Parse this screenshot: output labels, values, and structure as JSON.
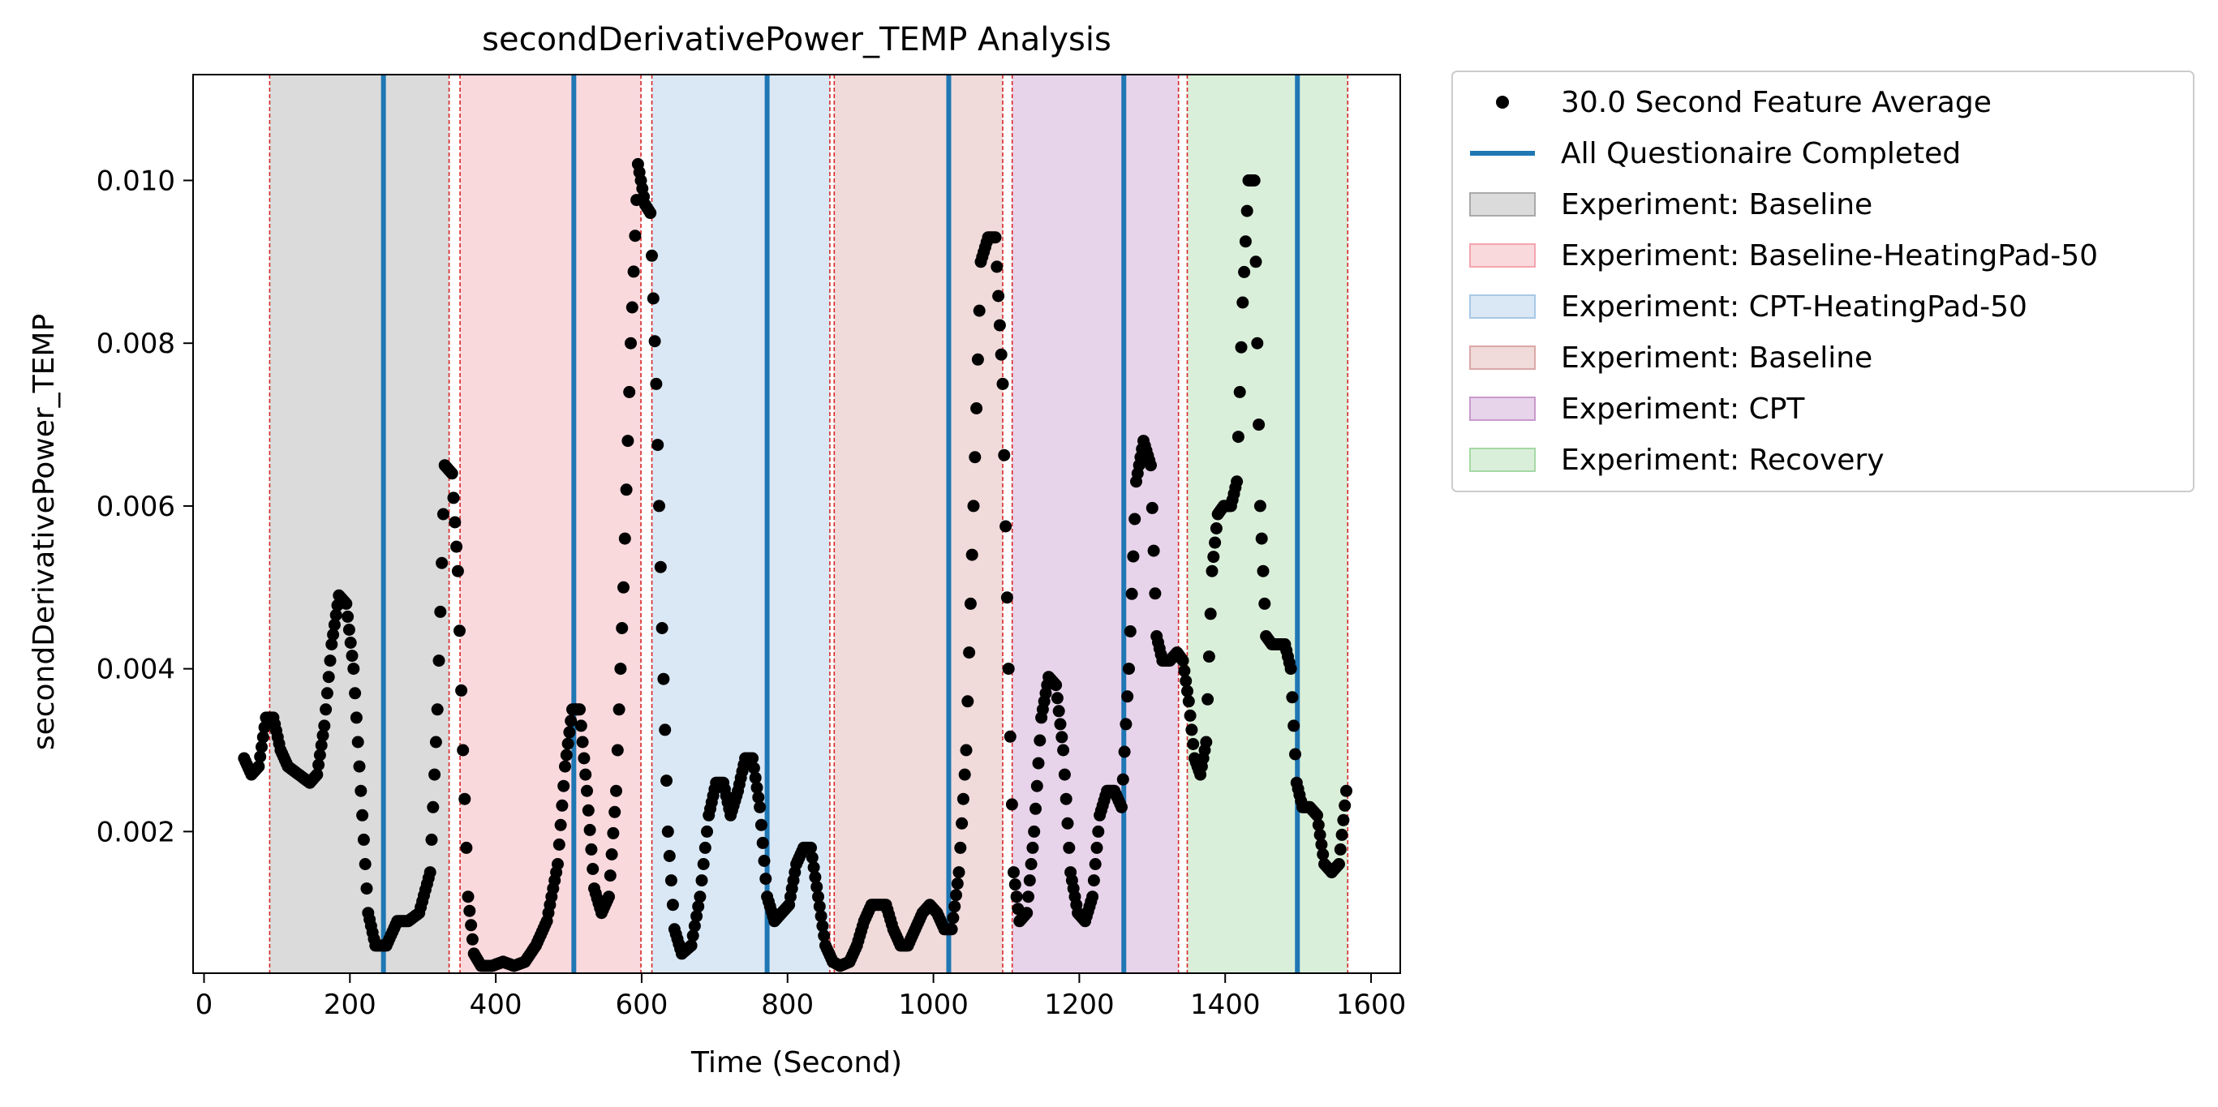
{
  "chart_data": {
    "type": "scatter",
    "title": "secondDerivativePower_TEMP Analysis",
    "xlabel": "Time (Second)",
    "ylabel": "secondDerivativePower_TEMP",
    "xlim": [
      -15,
      1640
    ],
    "ylim": [
      0.00026,
      0.0113
    ],
    "xticks": [
      0,
      200,
      400,
      600,
      800,
      1000,
      1200,
      1400,
      1600
    ],
    "xtick_labels": [
      "0",
      "200",
      "400",
      "600",
      "800",
      "1000",
      "1200",
      "1400",
      "1600"
    ],
    "yticks": [
      0.002,
      0.004,
      0.006,
      0.008,
      0.01
    ],
    "ytick_labels": [
      "0.002",
      "0.004",
      "0.006",
      "0.008",
      "0.010"
    ],
    "grid": false,
    "legend_position": "outside-top-right",
    "legend": [
      {
        "label": "30.0 Second Feature Average",
        "kind": "marker",
        "color": "#000000"
      },
      {
        "label": "All Questionaire Completed",
        "kind": "line",
        "color": "#1f77b4"
      },
      {
        "label": "Experiment: Baseline",
        "kind": "patch",
        "color": "#a9a9a9"
      },
      {
        "label": "Experiment: Baseline-HeatingPad-50",
        "kind": "patch",
        "color": "#f4a5ae"
      },
      {
        "label": "Experiment: CPT-HeatingPad-50",
        "kind": "patch",
        "color": "#a8c8e6"
      },
      {
        "label": "Experiment: Baseline",
        "kind": "patch",
        "color": "#dba7a7"
      },
      {
        "label": "Experiment: CPT",
        "kind": "patch",
        "color": "#c899cc"
      },
      {
        "label": "Experiment: Recovery",
        "kind": "patch",
        "color": "#a6d8a6"
      }
    ],
    "phases": [
      {
        "label": "Experiment: Baseline",
        "start": 90,
        "end": 336,
        "color": "#a9a9a9"
      },
      {
        "label": "Experiment: Baseline-HeatingPad-50",
        "start": 351,
        "end": 599,
        "color": "#f4a5ae"
      },
      {
        "label": "Experiment: CPT-HeatingPad-50",
        "start": 614,
        "end": 858,
        "color": "#a8c8e6"
      },
      {
        "label": "Experiment: Baseline",
        "start": 864,
        "end": 1095,
        "color": "#dba7a7"
      },
      {
        "label": "Experiment: CPT",
        "start": 1108,
        "end": 1336,
        "color": "#c899cc"
      },
      {
        "label": "Experiment: Recovery",
        "start": 1348,
        "end": 1568,
        "color": "#a6d8a6"
      }
    ],
    "boundary_lines_x": [
      90,
      336,
      351,
      599,
      614,
      858,
      864,
      1095,
      1108,
      1336,
      1348,
      1568
    ],
    "questionnaire_x": [
      246,
      507,
      772,
      1021,
      1261,
      1499
    ],
    "series": [
      {
        "name": "30.0 Second Feature Average",
        "points": [
          [
            55,
            0.0029
          ],
          [
            65,
            0.0027
          ],
          [
            75,
            0.0028
          ],
          [
            85,
            0.0034
          ],
          [
            95,
            0.0034
          ],
          [
            105,
            0.003
          ],
          [
            115,
            0.0028
          ],
          [
            130,
            0.0027
          ],
          [
            145,
            0.0026
          ],
          [
            155,
            0.0027
          ],
          [
            165,
            0.0033
          ],
          [
            175,
            0.0043
          ],
          [
            185,
            0.0049
          ],
          [
            195,
            0.0048
          ],
          [
            205,
            0.004
          ],
          [
            215,
            0.0025
          ],
          [
            225,
            0.001
          ],
          [
            235,
            0.0006
          ],
          [
            250,
            0.0006
          ],
          [
            265,
            0.0009
          ],
          [
            280,
            0.0009
          ],
          [
            295,
            0.001
          ],
          [
            310,
            0.0015
          ],
          [
            320,
            0.0035
          ],
          [
            330,
            0.0065
          ],
          [
            340,
            0.0064
          ],
          [
            348,
            0.0052
          ],
          [
            355,
            0.003
          ],
          [
            362,
            0.0012
          ],
          [
            370,
            0.0005
          ],
          [
            380,
            0.00035
          ],
          [
            395,
            0.00035
          ],
          [
            410,
            0.0004
          ],
          [
            425,
            0.00035
          ],
          [
            440,
            0.0004
          ],
          [
            455,
            0.0006
          ],
          [
            470,
            0.0009
          ],
          [
            485,
            0.0016
          ],
          [
            495,
            0.0028
          ],
          [
            505,
            0.0035
          ],
          [
            515,
            0.0035
          ],
          [
            525,
            0.0025
          ],
          [
            535,
            0.0013
          ],
          [
            545,
            0.001
          ],
          [
            555,
            0.0012
          ],
          [
            565,
            0.0025
          ],
          [
            575,
            0.005
          ],
          [
            585,
            0.008
          ],
          [
            595,
            0.0102
          ],
          [
            605,
            0.0097
          ],
          [
            612,
            0.0096
          ],
          [
            620,
            0.0075
          ],
          [
            628,
            0.0045
          ],
          [
            636,
            0.002
          ],
          [
            645,
            0.0008
          ],
          [
            655,
            0.0005
          ],
          [
            668,
            0.0006
          ],
          [
            680,
            0.0012
          ],
          [
            692,
            0.0022
          ],
          [
            702,
            0.0026
          ],
          [
            712,
            0.0026
          ],
          [
            722,
            0.0022
          ],
          [
            732,
            0.0025
          ],
          [
            742,
            0.0029
          ],
          [
            752,
            0.0029
          ],
          [
            762,
            0.0023
          ],
          [
            772,
            0.0012
          ],
          [
            782,
            0.0009
          ],
          [
            792,
            0.001
          ],
          [
            802,
            0.0011
          ],
          [
            812,
            0.0016
          ],
          [
            822,
            0.0018
          ],
          [
            832,
            0.0018
          ],
          [
            842,
            0.0012
          ],
          [
            852,
            0.0006
          ],
          [
            862,
            0.0004
          ],
          [
            872,
            0.00035
          ],
          [
            885,
            0.0004
          ],
          [
            895,
            0.0006
          ],
          [
            905,
            0.0009
          ],
          [
            915,
            0.0011
          ],
          [
            925,
            0.0011
          ],
          [
            935,
            0.0011
          ],
          [
            945,
            0.0008
          ],
          [
            955,
            0.0006
          ],
          [
            965,
            0.0006
          ],
          [
            975,
            0.0008
          ],
          [
            985,
            0.001
          ],
          [
            995,
            0.0011
          ],
          [
            1005,
            0.001
          ],
          [
            1015,
            0.0008
          ],
          [
            1025,
            0.0008
          ],
          [
            1035,
            0.0015
          ],
          [
            1045,
            0.003
          ],
          [
            1055,
            0.006
          ],
          [
            1065,
            0.009
          ],
          [
            1075,
            0.0093
          ],
          [
            1085,
            0.0093
          ],
          [
            1095,
            0.0075
          ],
          [
            1103,
            0.004
          ],
          [
            1110,
            0.0015
          ],
          [
            1118,
            0.0009
          ],
          [
            1128,
            0.001
          ],
          [
            1138,
            0.002
          ],
          [
            1148,
            0.0034
          ],
          [
            1158,
            0.0039
          ],
          [
            1168,
            0.0038
          ],
          [
            1178,
            0.003
          ],
          [
            1188,
            0.0015
          ],
          [
            1198,
            0.001
          ],
          [
            1208,
            0.0009
          ],
          [
            1218,
            0.0012
          ],
          [
            1228,
            0.0022
          ],
          [
            1238,
            0.0025
          ],
          [
            1248,
            0.0025
          ],
          [
            1258,
            0.0023
          ],
          [
            1268,
            0.004
          ],
          [
            1278,
            0.0063
          ],
          [
            1288,
            0.0068
          ],
          [
            1298,
            0.0065
          ],
          [
            1306,
            0.0044
          ],
          [
            1314,
            0.0041
          ],
          [
            1324,
            0.0041
          ],
          [
            1334,
            0.0042
          ],
          [
            1342,
            0.0041
          ],
          [
            1350,
            0.0036
          ],
          [
            1358,
            0.0029
          ],
          [
            1366,
            0.0027
          ],
          [
            1374,
            0.0031
          ],
          [
            1382,
            0.0052
          ],
          [
            1390,
            0.0059
          ],
          [
            1398,
            0.006
          ],
          [
            1408,
            0.006
          ],
          [
            1416,
            0.0063
          ],
          [
            1424,
            0.0085
          ],
          [
            1432,
            0.01
          ],
          [
            1440,
            0.01
          ],
          [
            1448,
            0.006
          ],
          [
            1456,
            0.0044
          ],
          [
            1464,
            0.0043
          ],
          [
            1472,
            0.0043
          ],
          [
            1482,
            0.0043
          ],
          [
            1490,
            0.004
          ],
          [
            1498,
            0.0026
          ],
          [
            1506,
            0.0023
          ],
          [
            1516,
            0.0023
          ],
          [
            1526,
            0.0022
          ],
          [
            1536,
            0.0016
          ],
          [
            1546,
            0.0015
          ],
          [
            1556,
            0.0016
          ],
          [
            1566,
            0.0025
          ]
        ]
      }
    ]
  }
}
